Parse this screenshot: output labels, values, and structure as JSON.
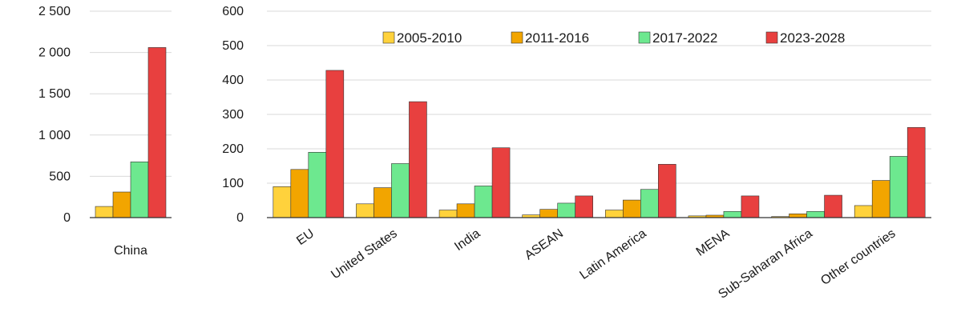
{
  "chart_data": [
    {
      "type": "bar",
      "categories": [
        "China"
      ],
      "series": [
        {
          "name": "2005-2010",
          "values": [
            135
          ]
        },
        {
          "name": "2011-2016",
          "values": [
            310
          ]
        },
        {
          "name": "2017-2022",
          "values": [
            675
          ]
        },
        {
          "name": "2023-2028",
          "values": [
            2060
          ]
        }
      ],
      "yticks": [
        "0",
        "500",
        "1 000",
        "1 500",
        "2 000",
        "2 500"
      ],
      "ylim": [
        0,
        2500
      ],
      "grid": true,
      "legend": "none"
    },
    {
      "type": "bar",
      "categories": [
        "EU",
        "United States",
        "India",
        "ASEAN",
        "Latin America",
        "MENA",
        "Sub-Saharan Africa",
        "Other countries"
      ],
      "series": [
        {
          "name": "2005-2010",
          "values": [
            90,
            40,
            22,
            8,
            22,
            5,
            3,
            35
          ]
        },
        {
          "name": "2011-2016",
          "values": [
            140,
            87,
            40,
            24,
            51,
            7,
            11,
            108
          ]
        },
        {
          "name": "2017-2022",
          "values": [
            190,
            157,
            92,
            42,
            82,
            18,
            18,
            178
          ]
        },
        {
          "name": "2023-2028",
          "values": [
            428,
            337,
            203,
            63,
            155,
            63,
            65,
            262
          ]
        }
      ],
      "yticks": [
        "0",
        "100",
        "200",
        "300",
        "400",
        "500",
        "600"
      ],
      "ylim": [
        0,
        600
      ],
      "grid": true,
      "legend": "top"
    }
  ],
  "colors": {
    "2005-2010": "#ffd23c",
    "2011-2016": "#f2a500",
    "2017-2022": "#6de88f",
    "2023-2028": "#e8403f"
  }
}
